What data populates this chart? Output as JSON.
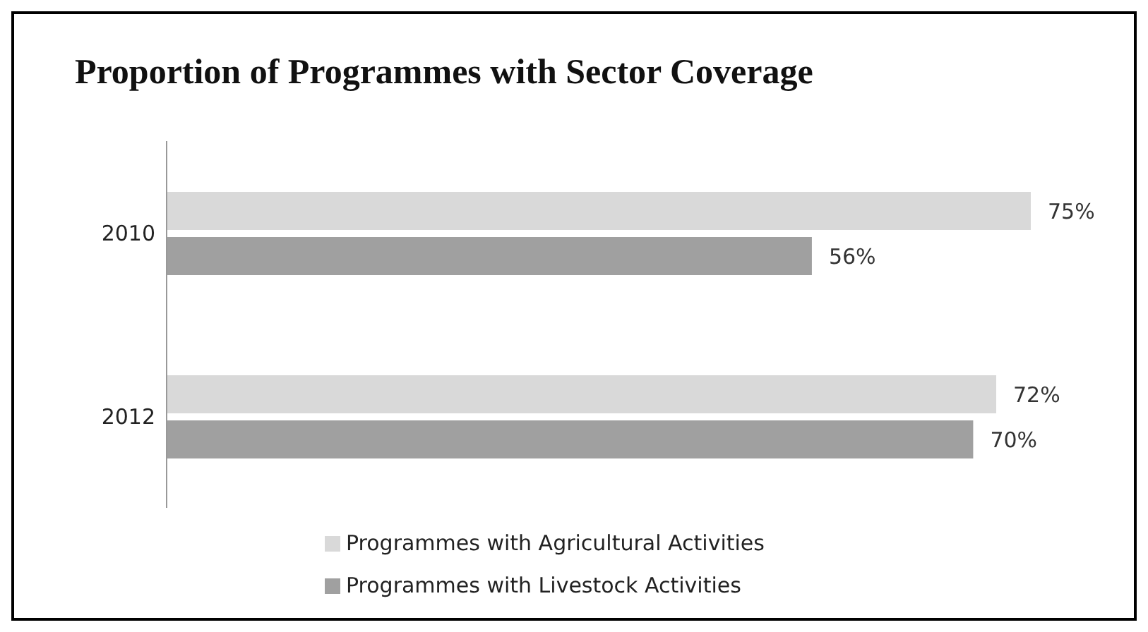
{
  "chart_data": {
    "type": "bar",
    "orientation": "horizontal",
    "title": "Proportion of Programmes with Sector Coverage",
    "categories": [
      "2010",
      "2012"
    ],
    "series": [
      {
        "name": "Programmes with Agricultural Activities",
        "color": "#d9d9d9",
        "values": [
          75,
          72
        ],
        "value_labels": [
          "75%",
          "72%"
        ]
      },
      {
        "name": "Programmes with Livestock Activities",
        "color": "#a0a0a0",
        "values": [
          56,
          70
        ],
        "value_labels": [
          "56%",
          "70%"
        ]
      }
    ],
    "legend": "bottom",
    "grid": false,
    "tick_labels": "y"
  }
}
